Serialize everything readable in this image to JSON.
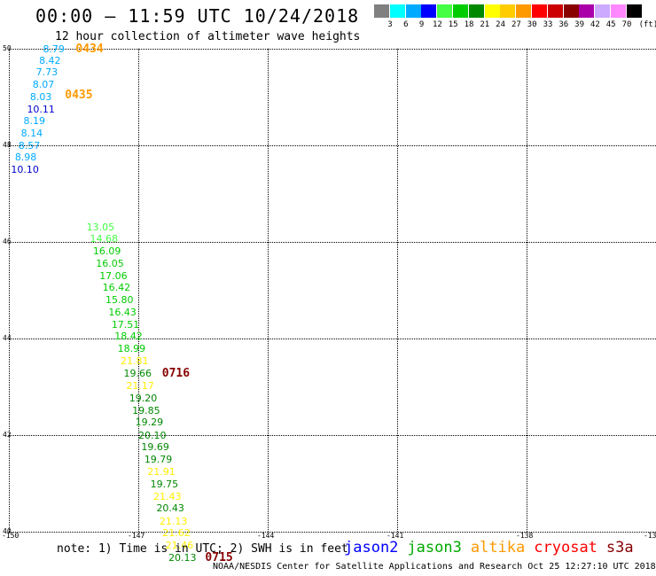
{
  "header": {
    "title": "00:00 – 11:59 UTC 10/24/2018",
    "subtitle": "12 hour collection of altimeter wave heights"
  },
  "colorbar": {
    "unit": "(ft)",
    "swatches": [
      {
        "label": "3",
        "color": "#808080"
      },
      {
        "label": "6",
        "color": "#00ffff"
      },
      {
        "label": "9",
        "color": "#00aaff"
      },
      {
        "label": "12",
        "color": "#0000ff"
      },
      {
        "label": "15",
        "color": "#44ff44"
      },
      {
        "label": "18",
        "color": "#00cc00"
      },
      {
        "label": "21",
        "color": "#008800"
      },
      {
        "label": "24",
        "color": "#ffff00"
      },
      {
        "label": "27",
        "color": "#ffcc00"
      },
      {
        "label": "30",
        "color": "#ff9900"
      },
      {
        "label": "33",
        "color": "#ff0000"
      },
      {
        "label": "36",
        "color": "#cc0000"
      },
      {
        "label": "39",
        "color": "#880000"
      },
      {
        "label": "42",
        "color": "#aa00aa"
      },
      {
        "label": "45",
        "color": "#ccaaff"
      },
      {
        "label": "70",
        "color": "#ff88ff"
      },
      {
        "label": "",
        "color": "#000000"
      }
    ]
  },
  "map": {
    "lat_range": [
      40,
      50
    ],
    "lon_range": [
      -150,
      -135
    ],
    "lat_ticks": [
      "50",
      "48",
      "46",
      "44",
      "42",
      "40"
    ],
    "lon_ticks": [
      "-150",
      "-147",
      "-144",
      "-141",
      "-138",
      "-135"
    ],
    "observations": [
      {
        "v": "8.79",
        "lat": 49.99,
        "lon": -149.21,
        "c": "#00aaff"
      },
      {
        "v": "8.42",
        "lat": 49.74,
        "lon": -149.3,
        "c": "#00aaff"
      },
      {
        "v": "7.73",
        "lat": 49.5,
        "lon": -149.37,
        "c": "#00aaff"
      },
      {
        "v": "8.07",
        "lat": 49.24,
        "lon": -149.45,
        "c": "#00aaff"
      },
      {
        "v": "8.03",
        "lat": 48.99,
        "lon": -149.51,
        "c": "#00aaff"
      },
      {
        "v": "10.11",
        "lat": 48.74,
        "lon": -149.58,
        "c": "#0000cc"
      },
      {
        "v": "8.19",
        "lat": 48.49,
        "lon": -149.66,
        "c": "#00aaff"
      },
      {
        "v": "8.14",
        "lat": 48.24,
        "lon": -149.72,
        "c": "#00aaff"
      },
      {
        "v": "8.57",
        "lat": 47.99,
        "lon": -149.78,
        "c": "#00aaff"
      },
      {
        "v": "8.98",
        "lat": 47.75,
        "lon": -149.86,
        "c": "#00aaff"
      },
      {
        "v": "10.10",
        "lat": 47.49,
        "lon": -149.95,
        "c": "#0000cc"
      },
      {
        "v": "13.05",
        "lat": 46.3,
        "lon": -148.2,
        "c": "#44ff44"
      },
      {
        "v": "14.68",
        "lat": 46.05,
        "lon": -148.12,
        "c": "#44ff44"
      },
      {
        "v": "16.09",
        "lat": 45.8,
        "lon": -148.05,
        "c": "#00cc00"
      },
      {
        "v": "16.05",
        "lat": 45.54,
        "lon": -147.98,
        "c": "#00cc00"
      },
      {
        "v": "17.06",
        "lat": 45.29,
        "lon": -147.9,
        "c": "#00cc00"
      },
      {
        "v": "16.42",
        "lat": 45.04,
        "lon": -147.83,
        "c": "#00cc00"
      },
      {
        "v": "15.80",
        "lat": 44.78,
        "lon": -147.76,
        "c": "#00cc00"
      },
      {
        "v": "16.43",
        "lat": 44.53,
        "lon": -147.69,
        "c": "#00cc00"
      },
      {
        "v": "17.51",
        "lat": 44.28,
        "lon": -147.62,
        "c": "#00cc00"
      },
      {
        "v": "18.42",
        "lat": 44.03,
        "lon": -147.55,
        "c": "#00cc00"
      },
      {
        "v": "18.99",
        "lat": 43.78,
        "lon": -147.48,
        "c": "#00cc00"
      },
      {
        "v": "21.81",
        "lat": 43.52,
        "lon": -147.41,
        "c": "#ffee00"
      },
      {
        "v": "19.66",
        "lat": 43.27,
        "lon": -147.34,
        "c": "#008800"
      },
      {
        "v": "21.17",
        "lat": 43.01,
        "lon": -147.28,
        "c": "#ffee00"
      },
      {
        "v": "19.20",
        "lat": 42.76,
        "lon": -147.21,
        "c": "#008800"
      },
      {
        "v": "19.85",
        "lat": 42.5,
        "lon": -147.14,
        "c": "#008800"
      },
      {
        "v": "19.29",
        "lat": 42.25,
        "lon": -147.07,
        "c": "#008800"
      },
      {
        "v": "20.10",
        "lat": 41.99,
        "lon": -147.0,
        "c": "#008800"
      },
      {
        "v": "19.69",
        "lat": 41.74,
        "lon": -146.93,
        "c": "#008800"
      },
      {
        "v": "19.79",
        "lat": 41.49,
        "lon": -146.86,
        "c": "#008800"
      },
      {
        "v": "21.91",
        "lat": 41.23,
        "lon": -146.79,
        "c": "#ffee00"
      },
      {
        "v": "19.75",
        "lat": 40.98,
        "lon": -146.72,
        "c": "#008800"
      },
      {
        "v": "21.43",
        "lat": 40.72,
        "lon": -146.65,
        "c": "#ffee00"
      },
      {
        "v": "20.43",
        "lat": 40.47,
        "lon": -146.58,
        "c": "#008800"
      },
      {
        "v": "21.13",
        "lat": 40.21,
        "lon": -146.51,
        "c": "#ffee00"
      },
      {
        "v": "21.62",
        "lat": 39.96,
        "lon": -146.44,
        "c": "#ffee00"
      },
      {
        "v": "21.46",
        "lat": 39.7,
        "lon": -146.37,
        "c": "#ffee00"
      },
      {
        "v": "20.13",
        "lat": 39.45,
        "lon": -146.3,
        "c": "#008800"
      }
    ],
    "time_labels": [
      {
        "text": "0434",
        "lat": 49.99,
        "lon": -148.45,
        "c": "#ff9900"
      },
      {
        "text": "0435",
        "lat": 49.02,
        "lon": -148.7,
        "c": "#ff9900"
      },
      {
        "text": "0716",
        "lat": 43.27,
        "lon": -146.45,
        "c": "#880000"
      },
      {
        "text": "0715",
        "lat": 39.45,
        "lon": -145.45,
        "c": "#880000"
      }
    ]
  },
  "footer": {
    "note": "note: 1) Time is in UTC; 2) SWH is in feet",
    "legend": [
      {
        "name": "jason2",
        "color": "#0000ff"
      },
      {
        "name": "jason3",
        "color": "#00aa00"
      },
      {
        "name": "altika",
        "color": "#ff9900"
      },
      {
        "name": "cryosat",
        "color": "#ff0000"
      },
      {
        "name": "s3a",
        "color": "#880000"
      }
    ],
    "credit": "NOAA/NESDIS Center for Satellite Applications and Research   Oct 25 12:27:10 UTC 2018"
  }
}
